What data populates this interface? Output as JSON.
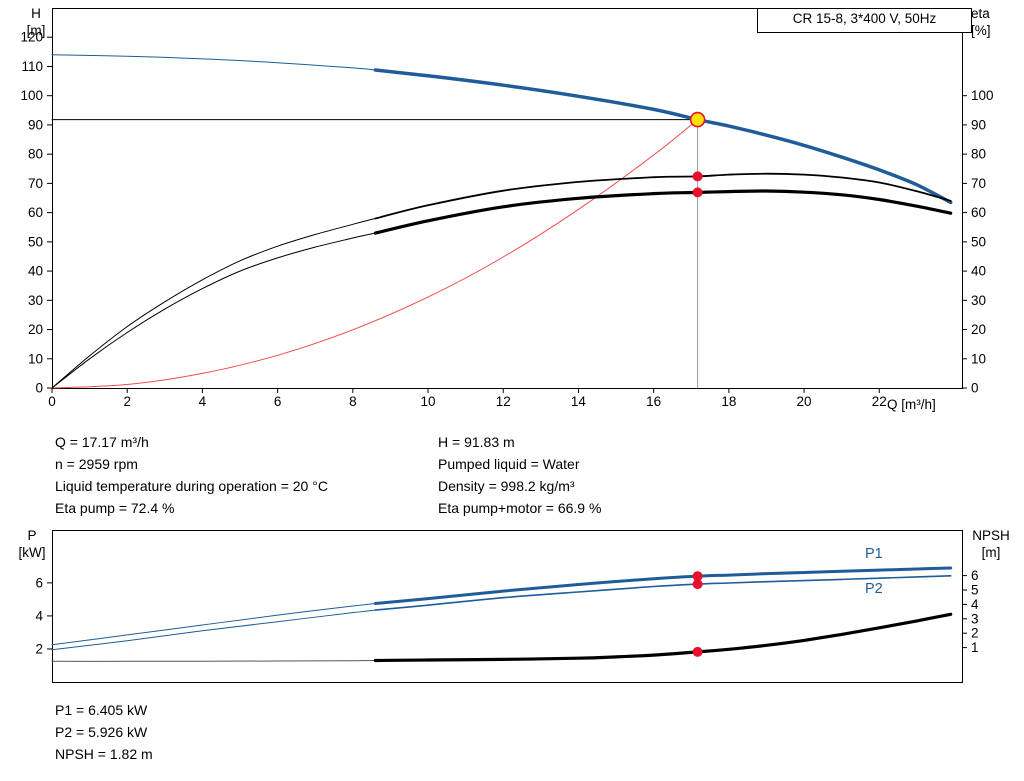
{
  "colors": {
    "curve_blue": "#1f5c99",
    "marker_red": "#e8112d",
    "system_red": "#ef4b4b",
    "duty_yellow": "#ffe000",
    "crosshair_gray": "#999999",
    "black": "#000000"
  },
  "top_chart_labels": {
    "y_left_1": "H",
    "y_left_2": "[m]",
    "y_right_1": "eta",
    "y_right_2": "[%]",
    "x_label": "Q [m³/h]"
  },
  "bottom_chart_labels": {
    "y_left_1": "P",
    "y_left_2": "[kW]",
    "y_right_1": "NPSH",
    "y_right_2": "[m]",
    "p1": "P1",
    "p2": "P2"
  },
  "info_top": {
    "col1": [
      "Q = 17.17 m³/h",
      "n = 2959 rpm",
      "Liquid temperature during operation = 20 °C",
      "Eta pump = 72.4 %"
    ],
    "col2": [
      "H = 91.83 m",
      "Pumped liquid = Water",
      "Density = 998.2 kg/m³",
      "Eta pump+motor = 66.9 %"
    ]
  },
  "info_bottom": [
    "P1 = 6.405 kW",
    "P2 = 5.926 kW",
    "NPSH = 1.82 m"
  ],
  "chart_data": [
    {
      "type": "line",
      "name": "qh-eta-chart",
      "title": "CR 15-8, 3*400 V, 50Hz",
      "x_axis": {
        "label": "Q [m³/h]",
        "min": 0,
        "max": 24.2,
        "ticks": [
          0,
          2,
          4,
          6,
          8,
          10,
          12,
          14,
          16,
          18,
          20,
          22
        ]
      },
      "y_left": {
        "label": "H [m]",
        "min": 0,
        "max": 130,
        "ticks": [
          0,
          10,
          20,
          30,
          40,
          50,
          60,
          70,
          80,
          90,
          100,
          110,
          120
        ]
      },
      "y_right": {
        "label": "eta [%]",
        "ticks": [
          0,
          10,
          20,
          30,
          40,
          50,
          60,
          70,
          80,
          90,
          100
        ]
      },
      "duty_point": {
        "Q": 17.17,
        "H": 91.83,
        "eta_pump": 72.4,
        "eta_pump_motor": 66.9
      },
      "series": [
        {
          "name": "system-curve",
          "color": "#ef4b4b",
          "width": 1,
          "points": [
            [
              0,
              0
            ],
            [
              2,
              1.2
            ],
            [
              4,
              5.0
            ],
            [
              6,
              11.2
            ],
            [
              8,
              19.9
            ],
            [
              10,
              31.1
            ],
            [
              12,
              44.8
            ],
            [
              14,
              61.1
            ],
            [
              16,
              79.7
            ],
            [
              17.17,
              91.83
            ]
          ]
        },
        {
          "name": "duty-hline",
          "color": "#000000",
          "width": 1,
          "straight": true,
          "points": [
            [
              0,
              91.83
            ],
            [
              17.17,
              91.83
            ]
          ]
        },
        {
          "name": "duty-vline",
          "color": "#999999",
          "width": 1,
          "straight": true,
          "points": [
            [
              17.17,
              0
            ],
            [
              17.17,
              91.83
            ]
          ]
        },
        {
          "name": "head-curve-thin",
          "color": "#1f5c99",
          "width": 1,
          "points": [
            [
              0,
              114
            ],
            [
              2,
              113.5
            ],
            [
              4,
              112.6
            ],
            [
              6,
              111.3
            ],
            [
              8,
              109.5
            ],
            [
              8.6,
              108.8
            ]
          ]
        },
        {
          "name": "head-curve",
          "color": "#1f5c99",
          "width": 3.5,
          "points": [
            [
              8.6,
              108.8
            ],
            [
              10,
              106.8
            ],
            [
              12,
              103.6
            ],
            [
              14,
              99.8
            ],
            [
              16,
              95.3
            ],
            [
              17.17,
              91.83
            ],
            [
              18,
              89.6
            ],
            [
              19,
              86.5
            ],
            [
              20,
              83.0
            ],
            [
              21,
              79.0
            ],
            [
              22,
              74.6
            ],
            [
              23,
              69.5
            ],
            [
              23.9,
              63.5
            ]
          ]
        },
        {
          "name": "eta-pump-curve-thin",
          "color": "#000000",
          "width": 1,
          "points": [
            [
              0,
              0
            ],
            [
              1,
              11
            ],
            [
              2,
              21
            ],
            [
              3,
              29.5
            ],
            [
              4,
              37
            ],
            [
              5,
              43.5
            ],
            [
              6,
              48.5
            ],
            [
              7,
              52.5
            ],
            [
              8,
              56
            ],
            [
              8.6,
              58
            ]
          ]
        },
        {
          "name": "eta-pump-curve",
          "color": "#000000",
          "width": 1.8,
          "points": [
            [
              8.6,
              58
            ],
            [
              10,
              62.5
            ],
            [
              12,
              67.5
            ],
            [
              14,
              70.5
            ],
            [
              16,
              72.1
            ],
            [
              17.17,
              72.4
            ],
            [
              18,
              73
            ],
            [
              19,
              73.3
            ],
            [
              20,
              73
            ],
            [
              21,
              72
            ],
            [
              22,
              70.3
            ],
            [
              23,
              67.3
            ],
            [
              23.9,
              64
            ]
          ]
        },
        {
          "name": "eta-pump-motor-curve-thin",
          "color": "#000000",
          "width": 1,
          "points": [
            [
              0,
              0
            ],
            [
              1,
              10
            ],
            [
              2,
              19
            ],
            [
              3,
              27
            ],
            [
              4,
              34
            ],
            [
              5,
              40
            ],
            [
              6,
              44.5
            ],
            [
              7,
              48.2
            ],
            [
              8,
              51.3
            ],
            [
              8.6,
              53
            ]
          ]
        },
        {
          "name": "eta-pump-motor-curve",
          "color": "#000000",
          "width": 3.2,
          "points": [
            [
              8.6,
              53
            ],
            [
              10,
              57.2
            ],
            [
              12,
              62
            ],
            [
              14,
              64.9
            ],
            [
              16,
              66.5
            ],
            [
              17.17,
              66.9
            ],
            [
              18,
              67.2
            ],
            [
              19,
              67.4
            ],
            [
              20,
              67
            ],
            [
              21,
              66.1
            ],
            [
              22,
              64.5
            ],
            [
              23,
              62.2
            ],
            [
              23.9,
              59.8
            ]
          ]
        }
      ],
      "markers": [
        {
          "name": "duty-point-marker",
          "x": 17.17,
          "y": 91.83,
          "r": 7,
          "fill": "#ffe000",
          "stroke": "#e8112d",
          "stroke_width": 1.6,
          "interactable": true
        },
        {
          "name": "eta-pump-point",
          "x": 17.17,
          "y": 72.4,
          "r": 5,
          "fill": "#e8112d"
        },
        {
          "name": "eta-pump-motor-point",
          "x": 17.17,
          "y": 66.9,
          "r": 5,
          "fill": "#e8112d"
        }
      ]
    },
    {
      "type": "line",
      "name": "power-npsh-chart",
      "x_axis": {
        "label": "",
        "min": 0,
        "max": 24.2,
        "ticks": []
      },
      "y_left": {
        "label": "P [kW]",
        "min": 0,
        "max": 9.2,
        "ticks": [
          2,
          4,
          6
        ]
      },
      "y_right": {
        "label": "NPSH [m]",
        "ticks": [
          1,
          2,
          3,
          4,
          5,
          6
        ]
      },
      "duty_point": {
        "Q": 17.17,
        "P1": 6.405,
        "P2": 5.926,
        "NPSH": 1.82
      },
      "series": [
        {
          "name": "p1-curve-thin",
          "color": "#1f5c99",
          "width": 1,
          "points": [
            [
              0,
              2.25
            ],
            [
              2,
              2.85
            ],
            [
              4,
              3.45
            ],
            [
              6,
              4.05
            ],
            [
              8,
              4.6
            ],
            [
              8.6,
              4.75
            ]
          ]
        },
        {
          "name": "p1-curve",
          "color": "#1f5c99",
          "width": 3,
          "points": [
            [
              8.6,
              4.75
            ],
            [
              10,
              5.05
            ],
            [
              12,
              5.5
            ],
            [
              14,
              5.9
            ],
            [
              16,
              6.25
            ],
            [
              17.17,
              6.405
            ],
            [
              18,
              6.47
            ],
            [
              19,
              6.56
            ],
            [
              20,
              6.63
            ],
            [
              21,
              6.7
            ],
            [
              22,
              6.77
            ],
            [
              23,
              6.84
            ],
            [
              23.9,
              6.9
            ]
          ]
        },
        {
          "name": "p2-curve-thin",
          "color": "#1f5c99",
          "width": 1,
          "points": [
            [
              0,
              1.95
            ],
            [
              2,
              2.5
            ],
            [
              4,
              3.1
            ],
            [
              6,
              3.65
            ],
            [
              8,
              4.2
            ],
            [
              8.6,
              4.35
            ]
          ]
        },
        {
          "name": "p2-curve",
          "color": "#1f5c99",
          "width": 1.6,
          "points": [
            [
              8.6,
              4.35
            ],
            [
              10,
              4.65
            ],
            [
              12,
              5.1
            ],
            [
              14,
              5.45
            ],
            [
              16,
              5.78
            ],
            [
              17.17,
              5.926
            ],
            [
              18,
              5.99
            ],
            [
              19,
              6.07
            ],
            [
              20,
              6.14
            ],
            [
              21,
              6.21
            ],
            [
              22,
              6.28
            ],
            [
              23,
              6.36
            ],
            [
              23.9,
              6.43
            ]
          ]
        },
        {
          "name": "npsh-curve-thin",
          "color": "#555555",
          "width": 1,
          "points": [
            [
              0,
              1.25
            ],
            [
              2,
              1.25
            ],
            [
              4,
              1.26
            ],
            [
              6,
              1.27
            ],
            [
              8,
              1.29
            ],
            [
              8.6,
              1.3
            ]
          ]
        },
        {
          "name": "npsh-curve",
          "color": "#000000",
          "width": 3.2,
          "points": [
            [
              8.6,
              1.3
            ],
            [
              10,
              1.33
            ],
            [
              12,
              1.37
            ],
            [
              14,
              1.44
            ],
            [
              15,
              1.52
            ],
            [
              16,
              1.63
            ],
            [
              17.17,
              1.82
            ],
            [
              18,
              1.98
            ],
            [
              19,
              2.22
            ],
            [
              20,
              2.52
            ],
            [
              21,
              2.88
            ],
            [
              22,
              3.28
            ],
            [
              23,
              3.7
            ],
            [
              23.9,
              4.1
            ]
          ]
        }
      ],
      "markers": [
        {
          "name": "p1-point",
          "x": 17.17,
          "y": 6.405,
          "r": 5,
          "fill": "#e8112d"
        },
        {
          "name": "p2-point",
          "x": 17.17,
          "y": 5.926,
          "r": 5,
          "fill": "#e8112d"
        },
        {
          "name": "npsh-point",
          "x": 17.17,
          "y": 1.82,
          "r": 5,
          "fill": "#e8112d"
        }
      ]
    }
  ]
}
